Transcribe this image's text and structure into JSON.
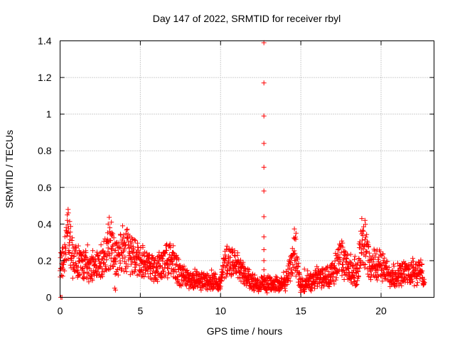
{
  "chart_data": {
    "type": "scatter",
    "title": "Day 147 of 2022, SRMTID for receiver rbyl",
    "xlabel": "GPS time / hours",
    "ylabel": "SRMTID / TECUs",
    "xlim": [
      0,
      23.3
    ],
    "ylim": [
      0,
      1.4
    ],
    "x_ticks": [
      "0",
      "5",
      "10",
      "15",
      "20"
    ],
    "x_tick_values": [
      0,
      5,
      10,
      15,
      20
    ],
    "y_ticks": [
      "0",
      "0.2",
      "0.4",
      "0.6",
      "0.8",
      "1",
      "1.2",
      "1.4"
    ],
    "y_tick_values": [
      0,
      0.2,
      0.4,
      0.6,
      0.8,
      1.0,
      1.2,
      1.4
    ],
    "grid": true,
    "marker": "+",
    "marker_color": "#ff0000",
    "envelope": {
      "description": "approximate typical SRMTID level vs time (hours, TECU)",
      "x": [
        0,
        0.3,
        0.5,
        0.8,
        1.5,
        2.5,
        3.1,
        3.6,
        4.0,
        4.5,
        5.0,
        5.5,
        6.0,
        6.5,
        7.0,
        7.5,
        8.0,
        9.0,
        10.0,
        10.3,
        11.0,
        11.5,
        12.0,
        12.5,
        13.0,
        14.0,
        14.6,
        15.0,
        16.0,
        17.0,
        17.5,
        18.0,
        18.5,
        18.9,
        19.3,
        19.8,
        20.5,
        21.5,
        22.5,
        22.7
      ],
      "y": [
        0.15,
        0.25,
        0.35,
        0.2,
        0.17,
        0.18,
        0.27,
        0.2,
        0.27,
        0.22,
        0.2,
        0.17,
        0.15,
        0.2,
        0.22,
        0.12,
        0.1,
        0.09,
        0.08,
        0.2,
        0.17,
        0.12,
        0.08,
        0.07,
        0.07,
        0.07,
        0.25,
        0.06,
        0.1,
        0.13,
        0.22,
        0.14,
        0.12,
        0.35,
        0.15,
        0.2,
        0.12,
        0.13,
        0.14,
        0.1
      ]
    },
    "spike": {
      "x": 12.7,
      "y": [
        0.06,
        0.1,
        0.15,
        0.2,
        0.26,
        0.33,
        0.44,
        0.58,
        0.71,
        0.84,
        0.99,
        1.17,
        1.39
      ]
    },
    "isolated_points": [
      {
        "x": 0.05,
        "y": 0.0
      },
      {
        "x": 0.12,
        "y": 0.0
      },
      {
        "x": 0.5,
        "y": 0.48
      },
      {
        "x": 0.45,
        "y": 0.45
      },
      {
        "x": 3.0,
        "y": 0.4
      },
      {
        "x": 3.2,
        "y": 0.41
      },
      {
        "x": 3.9,
        "y": 0.39
      },
      {
        "x": 3.4,
        "y": 0.05
      },
      {
        "x": 3.45,
        "y": 0.04
      },
      {
        "x": 18.8,
        "y": 0.43
      },
      {
        "x": 19.0,
        "y": 0.42
      },
      {
        "x": 14.7,
        "y": 0.35
      }
    ]
  }
}
